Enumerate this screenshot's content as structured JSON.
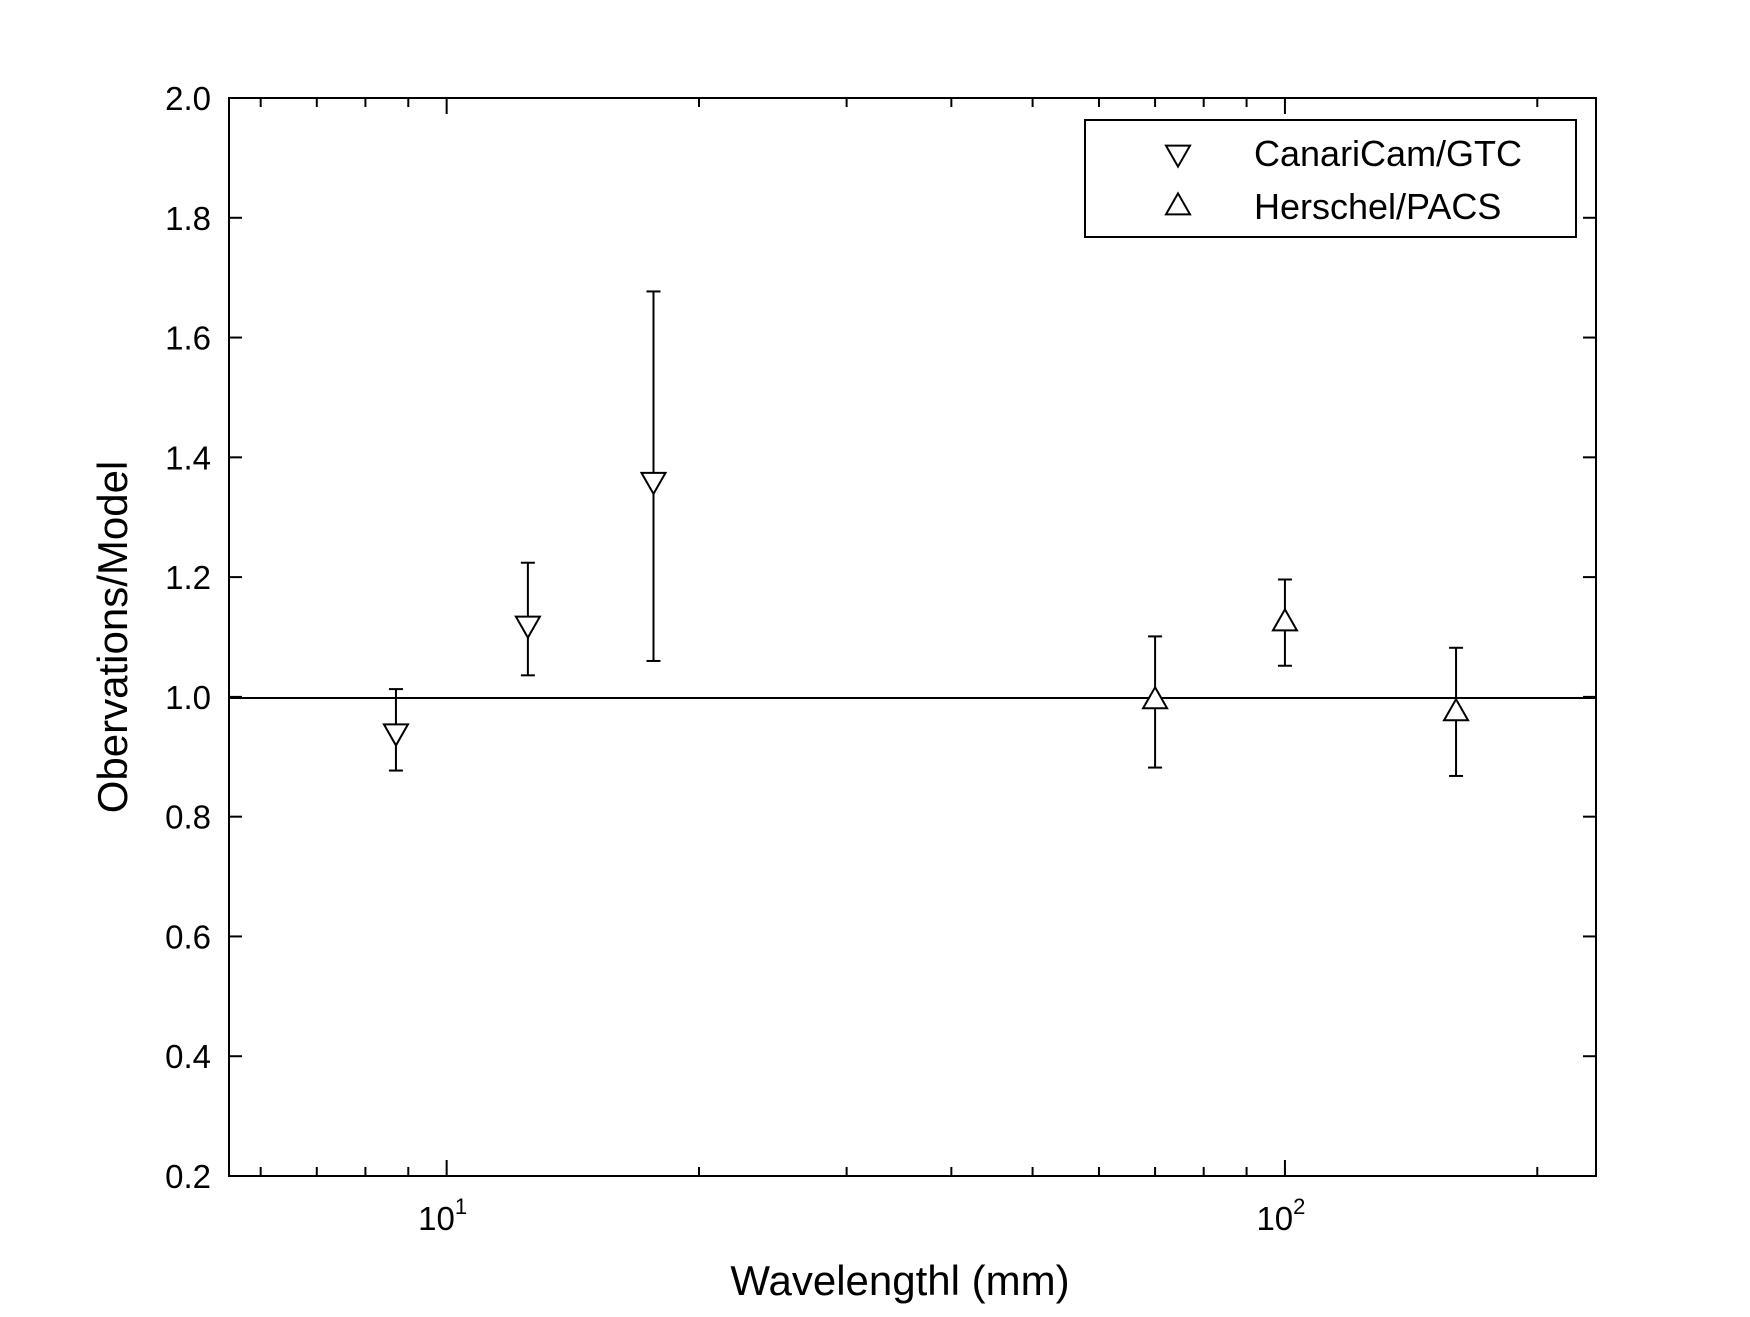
{
  "chart_data": {
    "type": "scatter",
    "xlabel": "Wavelengthl  (mm)",
    "ylabel": "Obervations/Model",
    "xscale": "log",
    "xlim": [
      5.5,
      235
    ],
    "ylim": [
      0.2,
      2.0
    ],
    "y_ticks": [
      "0.2",
      "0.4",
      "0.6",
      "0.8",
      "1.0",
      "1.2",
      "1.4",
      "1.6",
      "1.8",
      "2.0"
    ],
    "x_ticks": [
      {
        "base": "10",
        "exp": "1"
      },
      {
        "base": "10",
        "exp": "2"
      }
    ],
    "reference_line": 1.0,
    "legend_position": "top-right",
    "grid": false,
    "series": [
      {
        "name": "CanariCam/GTC",
        "marker": "triangle-down",
        "points": [
          {
            "x": 8.7,
            "y": 0.94,
            "yerr_low": 0.877,
            "yerr_high": 1.013
          },
          {
            "x": 12.5,
            "y": 1.12,
            "yerr_low": 1.036,
            "yerr_high": 1.224
          },
          {
            "x": 17.65,
            "y": 1.36,
            "yerr_low": 1.06,
            "yerr_high": 1.677
          }
        ]
      },
      {
        "name": "Herschel/PACS",
        "marker": "triangle-up",
        "points": [
          {
            "x": 70,
            "y": 0.995,
            "yerr_low": 0.882,
            "yerr_high": 1.101
          },
          {
            "x": 100,
            "y": 1.125,
            "yerr_low": 1.052,
            "yerr_high": 1.196
          },
          {
            "x": 160,
            "y": 0.975,
            "yerr_low": 0.868,
            "yerr_high": 1.082
          }
        ]
      }
    ]
  }
}
